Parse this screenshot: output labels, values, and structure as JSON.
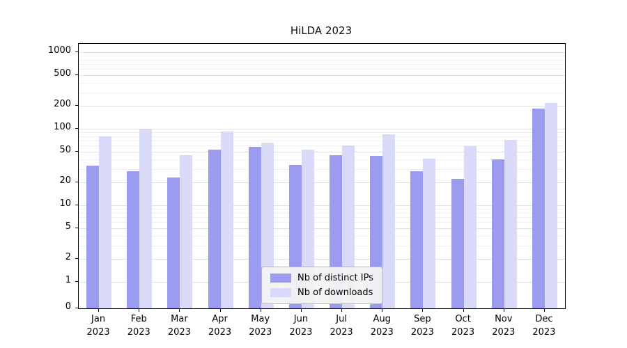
{
  "chart_data": {
    "type": "bar",
    "title": "HiLDA 2023",
    "scale": "symlog",
    "grid": true,
    "legend_position": "lower center",
    "categories": [
      "Jan",
      "Feb",
      "Mar",
      "Apr",
      "May",
      "Jun",
      "Jul",
      "Aug",
      "Sep",
      "Oct",
      "Nov",
      "Dec"
    ],
    "year": "2023",
    "series": [
      {
        "name": "Nb of distinct IPs",
        "color": "#9b9bef",
        "values": [
          33,
          28,
          23,
          53,
          58,
          34,
          45,
          44,
          28,
          22,
          40,
          185
        ]
      },
      {
        "name": "Nb of downloads",
        "color": "#d9d9f8",
        "values": [
          80,
          101,
          45,
          92,
          66,
          53,
          61,
          84,
          41,
          59,
          71,
          215
        ]
      }
    ],
    "yticks": [
      0,
      1,
      2,
      5,
      10,
      20,
      50,
      100,
      200,
      500,
      1000
    ],
    "ylim": [
      0,
      1000
    ]
  }
}
